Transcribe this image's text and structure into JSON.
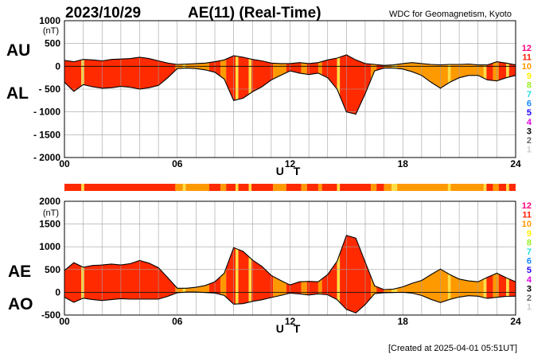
{
  "header": {
    "date": "2023/10/29",
    "title": "AE(11) (Real-Time)",
    "source": "WDC for Geomagnetism, Kyoto"
  },
  "footer": {
    "created": "[Created at 2025-04-01 05:51UT]"
  },
  "level_legend": {
    "values": [
      "12",
      "11",
      "10",
      "9",
      "8",
      "7",
      "6",
      "5",
      "4",
      "3",
      "2",
      "1"
    ],
    "colors": [
      "#ff0080",
      "#ff2000",
      "#ff9900",
      "#ffee00",
      "#99ee22",
      "#22dddd",
      "#1188ff",
      "#2200ff",
      "#dd00dd",
      "#000000",
      "#666666",
      "#cccccc"
    ]
  },
  "colors": {
    "red": "#ff2a00",
    "orange": "#ff9900",
    "yellow": "#ffdd44"
  },
  "chart_data": [
    {
      "type": "area",
      "series_labels": {
        "upper": "AU",
        "lower": "AL"
      },
      "unit": "(nT)",
      "xlabel": "U T",
      "xlim": [
        0,
        24
      ],
      "ylim": [
        -2000,
        1000
      ],
      "yticks": [
        1000,
        500,
        0,
        -500,
        -1000,
        -1500,
        -2000
      ],
      "ytick_labels": [
        "1000",
        "500",
        "0",
        "- 500",
        "- 1000",
        "- 1500",
        "- 2000"
      ],
      "xticks": [
        "00",
        "06",
        "12",
        "18",
        "24"
      ],
      "grid": true,
      "x_hours": [
        0,
        0.5,
        1,
        1.5,
        2,
        2.5,
        3,
        3.5,
        4,
        4.5,
        5,
        5.5,
        6,
        6.5,
        7,
        7.5,
        8,
        8.5,
        9,
        9.5,
        10,
        10.5,
        11,
        11.5,
        12,
        12.5,
        13,
        13.5,
        14,
        14.5,
        15,
        15.5,
        16,
        16.5,
        17,
        17.5,
        18,
        18.5,
        19,
        19.5,
        20,
        20.5,
        21,
        21.5,
        22,
        22.5,
        23,
        23.5,
        24
      ],
      "AU": [
        130,
        100,
        150,
        140,
        120,
        150,
        160,
        170,
        200,
        170,
        120,
        70,
        40,
        50,
        60,
        70,
        100,
        140,
        230,
        200,
        150,
        120,
        70,
        60,
        60,
        80,
        60,
        80,
        140,
        180,
        250,
        140,
        60,
        40,
        20,
        30,
        60,
        80,
        60,
        40,
        30,
        40,
        40,
        50,
        30,
        30,
        100,
        70,
        30
      ],
      "AL": [
        -350,
        -550,
        -400,
        -450,
        -480,
        -470,
        -440,
        -460,
        -500,
        -470,
        -420,
        -250,
        -50,
        -40,
        -50,
        -80,
        -130,
        -280,
        -750,
        -700,
        -560,
        -450,
        -300,
        -200,
        -100,
        -150,
        -180,
        -150,
        -250,
        -500,
        -1000,
        -1050,
        -600,
        -100,
        -40,
        -40,
        -60,
        -120,
        -200,
        -350,
        -480,
        -350,
        -250,
        -200,
        -200,
        -300,
        -320,
        -250,
        -200
      ]
    },
    {
      "type": "area",
      "series_labels": {
        "upper": "AE",
        "lower": "AO"
      },
      "unit": "(nT)",
      "xlabel": "U T",
      "xlim": [
        0,
        24
      ],
      "ylim": [
        -500,
        2000
      ],
      "yticks": [
        2000,
        1500,
        1000,
        500,
        0,
        -500
      ],
      "ytick_labels": [
        "2000",
        "1500",
        "1000",
        "500",
        "0",
        "-500"
      ],
      "xticks": [
        "00",
        "06",
        "12",
        "18",
        "24"
      ],
      "grid": true,
      "x_hours": [
        0,
        0.5,
        1,
        1.5,
        2,
        2.5,
        3,
        3.5,
        4,
        4.5,
        5,
        5.5,
        6,
        6.5,
        7,
        7.5,
        8,
        8.5,
        9,
        9.5,
        10,
        10.5,
        11,
        11.5,
        12,
        12.5,
        13,
        13.5,
        14,
        14.5,
        15,
        15.5,
        16,
        16.5,
        17,
        17.5,
        18,
        18.5,
        19,
        19.5,
        20,
        20.5,
        21,
        21.5,
        22,
        22.5,
        23,
        23.5,
        24
      ],
      "AE": [
        480,
        650,
        550,
        590,
        600,
        620,
        600,
        630,
        700,
        640,
        540,
        320,
        90,
        90,
        110,
        150,
        230,
        420,
        980,
        900,
        710,
        570,
        370,
        260,
        160,
        230,
        240,
        230,
        390,
        680,
        1250,
        1190,
        660,
        140,
        60,
        70,
        120,
        200,
        260,
        390,
        510,
        390,
        290,
        250,
        230,
        330,
        420,
        320,
        230
      ],
      "AO": [
        -110,
        -220,
        -130,
        -160,
        -180,
        -160,
        -140,
        -150,
        -150,
        -150,
        -150,
        -90,
        -10,
        5,
        5,
        -5,
        -15,
        -70,
        -260,
        -250,
        -200,
        -165,
        -115,
        -70,
        -20,
        -35,
        -60,
        -35,
        -55,
        -160,
        -375,
        -455,
        -270,
        -30,
        -10,
        -5,
        0,
        -20,
        -70,
        -155,
        -225,
        -155,
        -105,
        -75,
        -85,
        -135,
        -110,
        -90,
        -85
      ]
    }
  ],
  "activity_bar": {
    "segments": [
      {
        "c": "red",
        "s": 0,
        "e": 0.9
      },
      {
        "c": "yellow",
        "s": 0.9,
        "e": 1.05
      },
      {
        "c": "red",
        "s": 1.05,
        "e": 5.9
      },
      {
        "c": "orange",
        "s": 5.9,
        "e": 6.3
      },
      {
        "c": "yellow",
        "s": 6.3,
        "e": 6.45
      },
      {
        "c": "orange",
        "s": 6.45,
        "e": 7.7
      },
      {
        "c": "red",
        "s": 7.7,
        "e": 8.3
      },
      {
        "c": "orange",
        "s": 8.3,
        "e": 8.6
      },
      {
        "c": "red",
        "s": 8.6,
        "e": 9.1
      },
      {
        "c": "yellow",
        "s": 9.1,
        "e": 9.25
      },
      {
        "c": "red",
        "s": 9.25,
        "e": 9.8
      },
      {
        "c": "yellow",
        "s": 9.8,
        "e": 9.95
      },
      {
        "c": "red",
        "s": 9.95,
        "e": 11.1
      },
      {
        "c": "orange",
        "s": 11.1,
        "e": 11.8
      },
      {
        "c": "red",
        "s": 11.8,
        "e": 12.6
      },
      {
        "c": "orange",
        "s": 12.6,
        "e": 12.9
      },
      {
        "c": "red",
        "s": 12.9,
        "e": 13.5
      },
      {
        "c": "orange",
        "s": 13.5,
        "e": 13.7
      },
      {
        "c": "red",
        "s": 13.7,
        "e": 14.5
      },
      {
        "c": "yellow",
        "s": 14.5,
        "e": 14.65
      },
      {
        "c": "red",
        "s": 14.65,
        "e": 16.3
      },
      {
        "c": "orange",
        "s": 16.3,
        "e": 16.6
      },
      {
        "c": "red",
        "s": 16.6,
        "e": 17.0
      },
      {
        "c": "orange",
        "s": 17.0,
        "e": 17.4
      },
      {
        "c": "yellow",
        "s": 17.4,
        "e": 17.7
      },
      {
        "c": "orange",
        "s": 17.7,
        "e": 20.4
      },
      {
        "c": "yellow",
        "s": 20.4,
        "e": 20.55
      },
      {
        "c": "orange",
        "s": 20.55,
        "e": 22.3
      },
      {
        "c": "yellow",
        "s": 22.3,
        "e": 22.45
      },
      {
        "c": "red",
        "s": 22.45,
        "e": 22.8
      },
      {
        "c": "orange",
        "s": 22.8,
        "e": 23.1
      },
      {
        "c": "red",
        "s": 23.1,
        "e": 23.5
      },
      {
        "c": "yellow",
        "s": 23.5,
        "e": 23.65
      },
      {
        "c": "red",
        "s": 23.65,
        "e": 24
      }
    ]
  }
}
